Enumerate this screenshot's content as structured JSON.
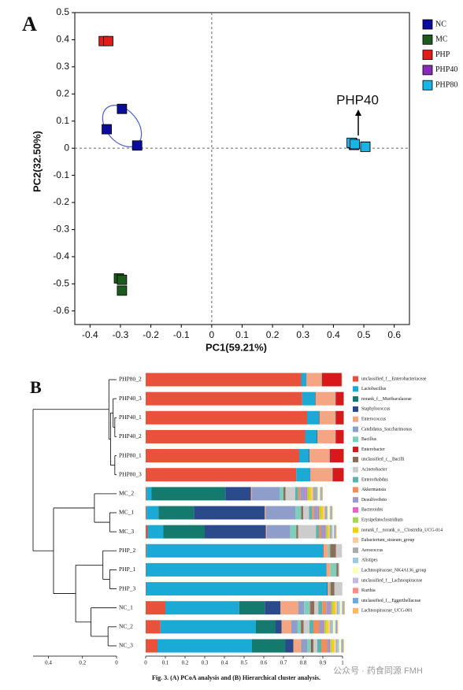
{
  "chart_data": [
    {
      "type": "scatter",
      "panel": "A",
      "xlabel": "PC1(59.21%)",
      "ylabel": "PC2(32.50%)",
      "xlim": [
        -0.45,
        0.65
      ],
      "ylim": [
        -0.65,
        0.5
      ],
      "xticks": [
        -0.4,
        -0.3,
        -0.2,
        -0.1,
        0,
        0.1,
        0.2,
        0.3,
        0.4,
        0.5,
        0.6
      ],
      "yticks": [
        -0.6,
        -0.5,
        -0.4,
        -0.3,
        -0.2,
        -0.1,
        0,
        0.1,
        0.2,
        0.3,
        0.4,
        0.5
      ],
      "legend": "right",
      "annotation": "PHP40",
      "series": [
        {
          "name": "NC",
          "color": "#0b0b9c",
          "x": [
            -0.345,
            -0.295,
            -0.245
          ],
          "y": [
            0.07,
            0.145,
            0.01
          ]
        },
        {
          "name": "MC",
          "color": "#1d5a1d",
          "x": [
            -0.305,
            -0.295,
            -0.295
          ],
          "y": [
            -0.48,
            -0.485,
            -0.525
          ]
        },
        {
          "name": "PHP",
          "color": "#e01c1c",
          "x": [
            -0.355,
            -0.34
          ],
          "y": [
            0.395,
            0.395
          ]
        },
        {
          "name": "PHP40",
          "color": "#8a2bb8",
          "x": [
            0.462,
            0.468,
            0.505
          ],
          "y": [
            0.018,
            0.012,
            0.006
          ]
        },
        {
          "name": "PHP80",
          "color": "#1ab3e6",
          "x": [
            0.46,
            0.47,
            0.505
          ],
          "y": [
            0.02,
            0.015,
            0.005
          ]
        }
      ]
    },
    {
      "type": "stacked_bar_dendrogram",
      "panel": "B",
      "categories": [
        "PHP80_2",
        "PHP40_3",
        "PHP40_1",
        "PHP40_2",
        "PHP80_1",
        "PHP80_3",
        "MC_2",
        "MC_1",
        "MC_3",
        "PHP_2",
        "PHP_1",
        "PHP_3",
        "NC_1",
        "NC_2",
        "NC_3"
      ],
      "xlim": [
        0,
        1
      ],
      "xticks": [
        0,
        0.1,
        0.2,
        0.3,
        0.4,
        0.5,
        0.6,
        0.7,
        0.8,
        0.9,
        1
      ],
      "dendrogram_xlim": [
        0.49,
        0
      ],
      "dendrogram_xticks": [
        0.4,
        0.2,
        0
      ],
      "dendrogram": {
        "height": 0.49,
        "children": [
          {
            "height": 0.045,
            "children": [
              "PHP80_2",
              {
                "height": 0.035,
                "children": [
                  {
                    "height": 0.02,
                    "children": [
                      "PHP40_3",
                      {
                        "height": 0.01,
                        "children": [
                          "PHP40_1",
                          "PHP40_2"
                        ]
                      }
                    ]
                  },
                  {
                    "height": 0.01,
                    "children": [
                      "PHP80_1",
                      "PHP80_3"
                    ]
                  }
                ]
              }
            ]
          },
          {
            "height": 0.37,
            "children": [
              {
                "height": 0.13,
                "children": [
                  "MC_2",
                  {
                    "height": 0.04,
                    "children": [
                      "MC_1",
                      "MC_3"
                    ]
                  }
                ]
              },
              {
                "height": 0.24,
                "children": [
                  {
                    "height": 0.08,
                    "children": [
                      "PHP_2",
                      {
                        "height": 0.04,
                        "children": [
                          "PHP_1",
                          "PHP_3"
                        ]
                      }
                    ]
                  },
                  {
                    "height": 0.15,
                    "children": [
                      "NC_1",
                      {
                        "height": 0.05,
                        "children": [
                          "NC_2",
                          "NC_3"
                        ]
                      }
                    ]
                  }
                ]
              }
            ]
          }
        ]
      },
      "series": [
        {
          "name": "unclassified_f__Enterobacteriaceae",
          "color": "#e8513a",
          "values": [
            0.79,
            0.795,
            0.82,
            0.81,
            0.78,
            0.765,
            0.005,
            0.005,
            0.01,
            0.005,
            0.002,
            0.002,
            0.1,
            0.075,
            0.06
          ]
        },
        {
          "name": "Lactobacillus",
          "color": "#1ba9d6",
          "values": [
            0.025,
            0.065,
            0.06,
            0.06,
            0.05,
            0.07,
            0.025,
            0.06,
            0.08,
            0.895,
            0.915,
            0.92,
            0.375,
            0.485,
            0.48
          ]
        },
        {
          "name": "norank_f__Muribaculaceae",
          "color": "#157a6e",
          "values": [
            0,
            0,
            0,
            0,
            0,
            0,
            0.375,
            0.18,
            0.21,
            0,
            0,
            0,
            0.13,
            0.1,
            0.17
          ]
        },
        {
          "name": "Staphylococcus",
          "color": "#2b4a8c",
          "values": [
            0.002,
            0.002,
            0.002,
            0.002,
            0.002,
            0.002,
            0.13,
            0.36,
            0.31,
            0.002,
            0.002,
            0.002,
            0.08,
            0.03,
            0.04
          ]
        },
        {
          "name": "Enterococcus",
          "color": "#f4a582",
          "values": [
            0.075,
            0.1,
            0.08,
            0.09,
            0.1,
            0.11,
            0.005,
            0.005,
            0.005,
            0.025,
            0.02,
            0.01,
            0.09,
            0.05,
            0.04
          ]
        },
        {
          "name": "Candidatus_Saccharimonas",
          "color": "#8e9dc9",
          "values": [
            0,
            0,
            0,
            0,
            0,
            0,
            0.14,
            0.15,
            0.12,
            0,
            0,
            0,
            0.03,
            0.03,
            0.03
          ]
        },
        {
          "name": "Bacillus",
          "color": "#7fcdbb",
          "values": [
            0.003,
            0.003,
            0.003,
            0.003,
            0.003,
            0.003,
            0.02,
            0.03,
            0.03,
            0.01,
            0.03,
            0.005,
            0.03,
            0.02,
            0.02
          ]
        },
        {
          "name": "Enterobacter",
          "color": "#d7191c",
          "values": [
            0.1,
            0.04,
            0.04,
            0.04,
            0.07,
            0.055,
            0,
            0,
            0,
            0,
            0,
            0,
            0.002,
            0.002,
            0.002
          ]
        },
        {
          "name": "unclassified_c__Bacilli",
          "color": "#8c6d57",
          "values": [
            0.002,
            0.002,
            0.002,
            0.002,
            0.002,
            0.002,
            0.01,
            0.01,
            0.01,
            0.03,
            0.01,
            0.02,
            0.02,
            0.01,
            0.01
          ]
        },
        {
          "name": "Acinetobacter",
          "color": "#cccccc",
          "values": [
            0,
            0,
            0,
            0,
            0,
            0,
            0.05,
            0.03,
            0.09,
            0.03,
            0.005,
            0.04,
            0.02,
            0.03,
            0.02
          ]
        },
        {
          "name": "Enterorhabdus",
          "color": "#5ab4ac",
          "values": [
            0,
            0,
            0,
            0,
            0,
            0,
            0.015,
            0.015,
            0.015,
            0,
            0,
            0,
            0.02,
            0.02,
            0.02
          ]
        },
        {
          "name": "Akkermansia",
          "color": "#f28e5c",
          "values": [
            0,
            0,
            0,
            0,
            0,
            0,
            0.01,
            0.01,
            0.01,
            0,
            0,
            0,
            0.02,
            0.03,
            0.03
          ]
        },
        {
          "name": "Desulfovibrio",
          "color": "#9e9ac8",
          "values": [
            0,
            0,
            0,
            0,
            0,
            0,
            0.03,
            0.02,
            0.02,
            0,
            0,
            0,
            0.02,
            0.02,
            0.01
          ]
        },
        {
          "name": "Bacteroides",
          "color": "#e066c8",
          "values": [
            0,
            0,
            0,
            0,
            0,
            0,
            0.005,
            0.005,
            0.005,
            0,
            0,
            0,
            0.005,
            0.005,
            0.005
          ]
        },
        {
          "name": "Erysipelatoclostridium",
          "color": "#a6d854",
          "values": [
            0,
            0,
            0,
            0,
            0,
            0,
            0.01,
            0.01,
            0.01,
            0,
            0,
            0,
            0.01,
            0.01,
            0.01
          ]
        },
        {
          "name": "norank_f__norank_o__Clostridia_UCG-014",
          "color": "#f5d000",
          "values": [
            0,
            0,
            0,
            0,
            0,
            0,
            0.01,
            0.01,
            0.005,
            0,
            0,
            0,
            0.01,
            0.01,
            0.01
          ]
        },
        {
          "name": "Eubacterium_siraeum_group",
          "color": "#f9c89b",
          "values": [
            0,
            0,
            0,
            0,
            0,
            0,
            0.01,
            0.01,
            0.005,
            0,
            0,
            0,
            0.01,
            0.01,
            0.01
          ]
        },
        {
          "name": "Aerococcus",
          "color": "#aaaaaa",
          "values": [
            0,
            0,
            0,
            0,
            0,
            0,
            0.02,
            0.01,
            0.01,
            0,
            0,
            0,
            0.005,
            0.005,
            0.005
          ]
        },
        {
          "name": "Alistipes",
          "color": "#9ecae1",
          "values": [
            0,
            0,
            0,
            0,
            0,
            0,
            0.005,
            0.005,
            0.005,
            0,
            0,
            0,
            0.01,
            0.01,
            0.01
          ]
        },
        {
          "name": "Lachnospiraceae_NK4A136_group",
          "color": "#ffffb3",
          "values": [
            0,
            0,
            0,
            0,
            0,
            0,
            0.01,
            0.01,
            0.005,
            0,
            0,
            0,
            0.01,
            0.01,
            0.01
          ]
        },
        {
          "name": "unclassified_f__Lachnospiraceae",
          "color": "#c7b8e0",
          "values": [
            0,
            0,
            0,
            0,
            0,
            0,
            0.005,
            0.005,
            0.005,
            0,
            0,
            0,
            0.005,
            0.005,
            0.005
          ]
        },
        {
          "name": "Kurthia",
          "color": "#fc8d8d",
          "values": [
            0,
            0,
            0,
            0,
            0,
            0,
            0,
            0,
            0,
            0,
            0,
            0,
            0,
            0,
            0
          ]
        },
        {
          "name": "unclassified_f__Eggerthellaceae",
          "color": "#6fa8dc",
          "values": [
            0,
            0,
            0,
            0,
            0,
            0,
            0.005,
            0.005,
            0.005,
            0,
            0,
            0,
            0.005,
            0.005,
            0.005
          ]
        },
        {
          "name": "Lachnospiraceae_UCG-001",
          "color": "#fdb863",
          "values": [
            0,
            0,
            0,
            0,
            0,
            0,
            0.005,
            0.005,
            0.005,
            0,
            0,
            0,
            0.005,
            0.005,
            0.005
          ]
        }
      ]
    }
  ],
  "caption": "Fig. 3. (A) PCoA analysis and (B) Hierarchical cluster analysis.",
  "watermark": "公众号 · 药食同源 FMH"
}
